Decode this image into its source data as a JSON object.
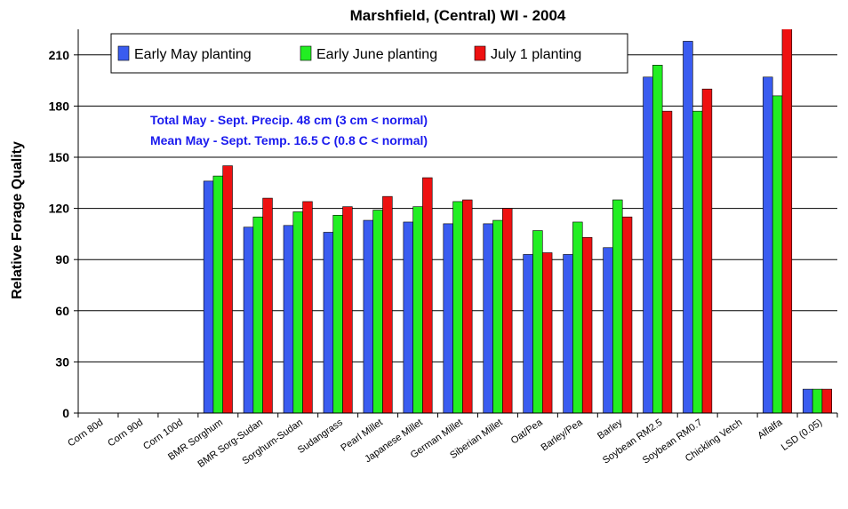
{
  "chart_data": {
    "type": "bar",
    "title": "Marshfield, (Central) WI - 2004",
    "y_label": "Relative Forage Quality",
    "annotations": [
      "Total May - Sept. Precip. 48 cm (3 cm < normal)",
      "Mean May - Sept. Temp. 16.5 C (0.8 C < normal)"
    ],
    "categories": [
      "Corn 80d",
      "Corn 90d",
      "Corn 100d",
      "BMR Sorghum",
      "BMR Sorg-Sudan",
      "Sorghum-Sudan",
      "Sudangrass",
      "Pearl Millet",
      "Japanese Millet",
      "German Millet",
      "Siberian Millet",
      "Oat/Pea",
      "Barley/Pea",
      "Barley",
      "Soybean RM2.5",
      "Soybean RM0.7",
      "Chickling Vetch",
      "Alfalfa",
      "LSD (0.05)"
    ],
    "series": [
      {
        "name": "Early May planting",
        "color": "#3a5cf0",
        "values": [
          0,
          0,
          0,
          136,
          109,
          110,
          106,
          113,
          112,
          111,
          111,
          93,
          93,
          97,
          197,
          218,
          0,
          197,
          14
        ]
      },
      {
        "name": "Early June planting",
        "color": "#22ee22",
        "values": [
          0,
          0,
          0,
          139,
          115,
          118,
          116,
          119,
          121,
          124,
          113,
          107,
          112,
          125,
          204,
          177,
          0,
          186,
          14
        ]
      },
      {
        "name": "July 1 planting",
        "color": "#ee1111",
        "values": [
          0,
          0,
          0,
          145,
          126,
          124,
          121,
          127,
          138,
          125,
          120,
          94,
          103,
          115,
          177,
          190,
          0,
          230,
          14
        ]
      }
    ],
    "ylim": [
      0,
      225
    ],
    "yticks": [
      0,
      30,
      60,
      90,
      120,
      150,
      180,
      210
    ],
    "grid": true,
    "legend": "top-left"
  }
}
